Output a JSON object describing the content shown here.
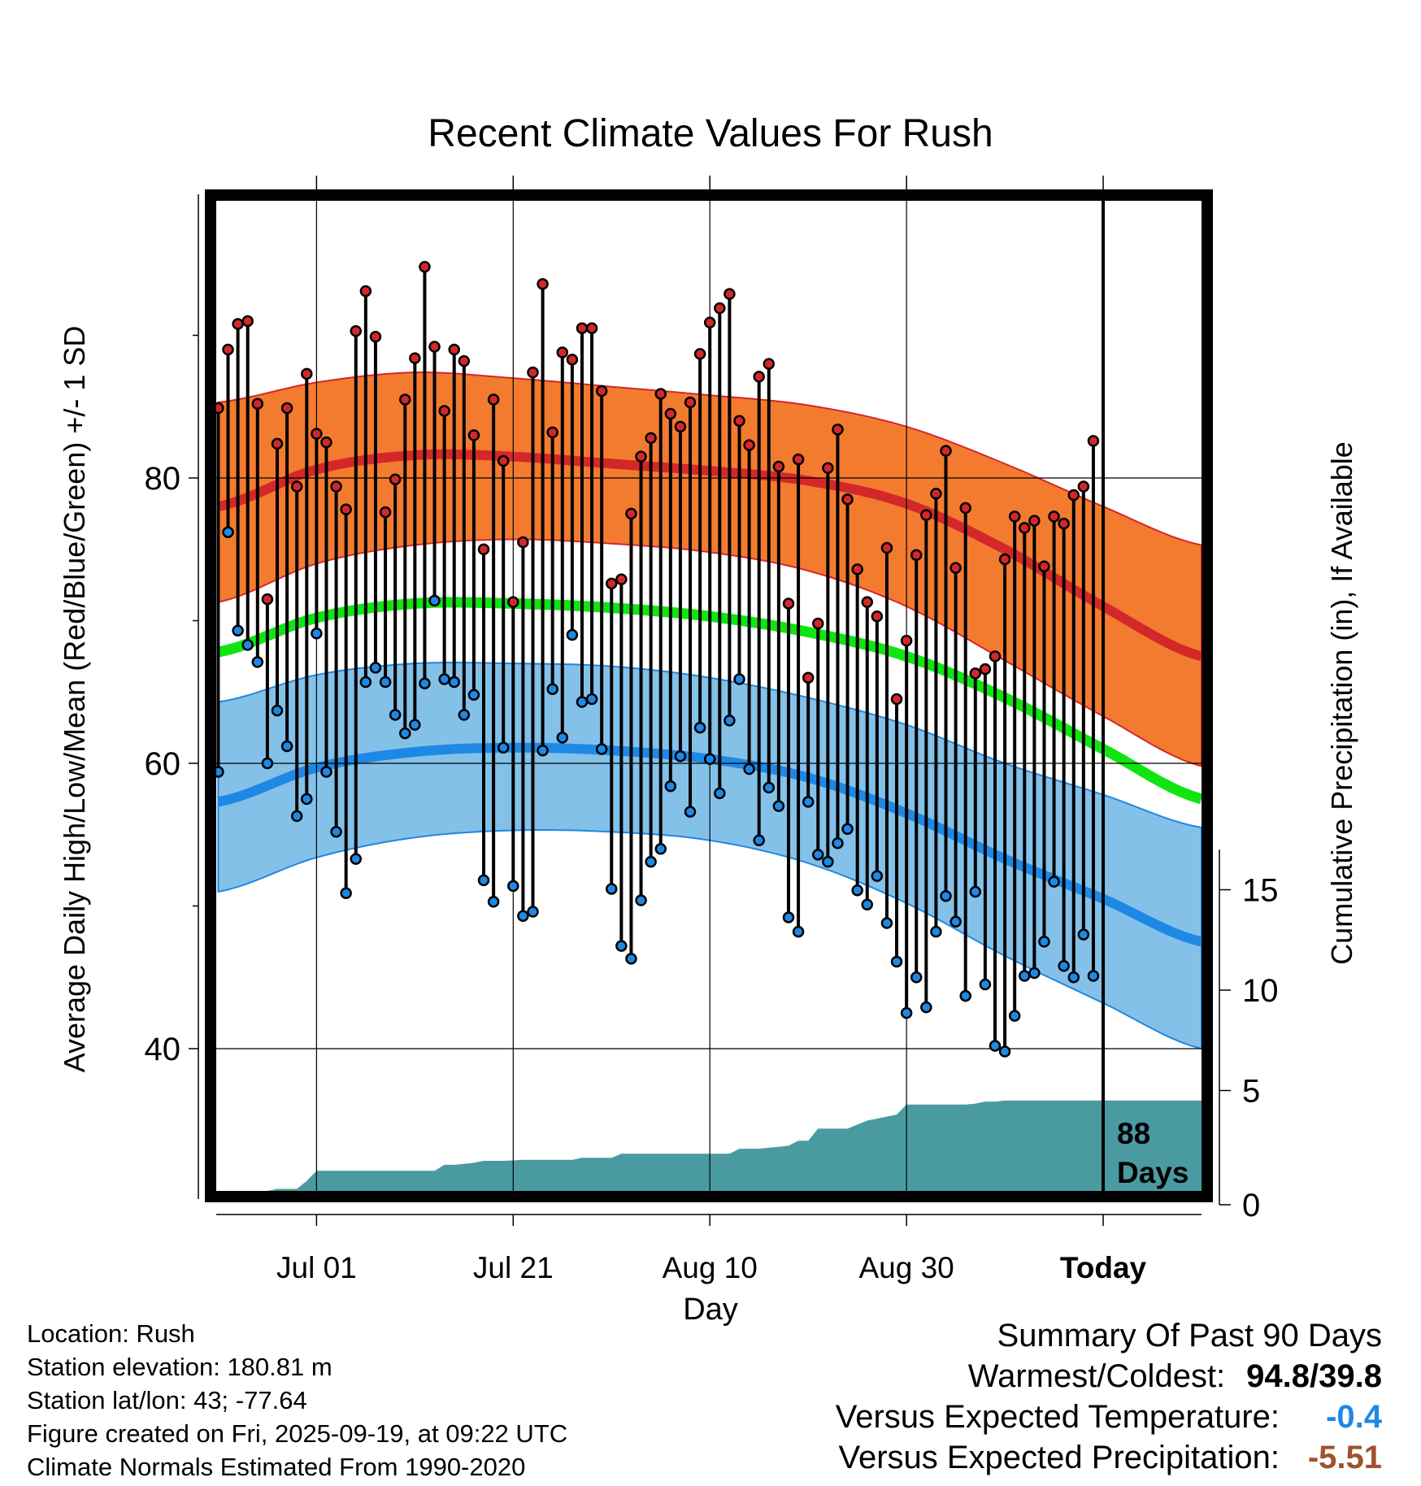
{
  "title": "Recent Climate Values For Rush",
  "colors": {
    "high_band": "#f37b2f",
    "high_line": "#d3282a",
    "low_band": "#84c1e8",
    "low_line": "#1e88e5",
    "mean_line": "#11e511",
    "precip_fill": "#4a9aa1",
    "high_marker": "#d3282a",
    "low_marker": "#1e88e5",
    "temp_value": "#1e88e5",
    "precip_value": "#a0522d"
  },
  "chart_data": {
    "type": "line",
    "title": "Recent Climate Values For Rush",
    "xlabel": "Day",
    "ylabel_left": "Average Daily High/Low/Mean (Red/Blue/Green) +/- 1 SD",
    "ylabel_right": "Cumulative Precipitation (in), If Available",
    "x_ticks": [
      {
        "label": "Jul 01",
        "day": 10
      },
      {
        "label": "Jul 21",
        "day": 30
      },
      {
        "label": "Aug 10",
        "day": 50
      },
      {
        "label": "Aug 30",
        "day": 70
      },
      {
        "label": "Today",
        "day": 90
      }
    ],
    "xlim": [
      -0.2,
      100
    ],
    "temp_ylim": [
      30,
      100
    ],
    "temp_yticks": [
      40,
      60,
      80
    ],
    "temp_minor_yticks": [
      50,
      70,
      90
    ],
    "precip_ylim": [
      0,
      17
    ],
    "precip_yticks": [
      0,
      5,
      10,
      15
    ],
    "today_day": 90,
    "annotation": "88 Days",
    "annotation_line1": "88",
    "annotation_line2": "Days",
    "normals": {
      "days": [
        0,
        10,
        20,
        30,
        40,
        50,
        60,
        70,
        80,
        90,
        100
      ],
      "high_mean": [
        78.0,
        80.6,
        81.6,
        81.5,
        81.0,
        80.5,
        79.8,
        78.2,
        75.0,
        71.0,
        67.5
      ],
      "high_upper": [
        85.3,
        86.7,
        87.4,
        87.0,
        86.4,
        85.8,
        85.1,
        83.6,
        81.0,
        78.0,
        75.3
      ],
      "high_lower": [
        71.3,
        74.0,
        75.3,
        75.7,
        75.4,
        74.8,
        73.5,
        71.0,
        67.2,
        63.3,
        59.8
      ],
      "mean_mean": [
        67.8,
        70.2,
        71.2,
        71.2,
        70.9,
        70.3,
        69.2,
        67.5,
        64.6,
        61.0,
        57.5
      ],
      "low_mean": [
        57.3,
        59.7,
        60.8,
        61.1,
        60.9,
        60.3,
        59.0,
        56.5,
        53.3,
        50.5,
        47.5
      ],
      "low_upper": [
        64.3,
        66.2,
        67.0,
        67.0,
        66.8,
        66.0,
        64.6,
        62.7,
        60.0,
        57.8,
        55.5
      ],
      "low_lower": [
        51.0,
        53.4,
        54.8,
        55.3,
        55.2,
        54.6,
        53.0,
        50.2,
        46.5,
        43.2,
        40.0
      ]
    },
    "daily": {
      "start_day": 0,
      "high": [
        84.9,
        89.0,
        90.8,
        91.0,
        85.2,
        71.5,
        82.4,
        84.9,
        79.4,
        87.3,
        83.1,
        82.5,
        79.4,
        77.8,
        90.3,
        93.1,
        89.9,
        77.6,
        79.9,
        85.5,
        88.4,
        94.8,
        89.2,
        84.7,
        89.0,
        88.2,
        83.0,
        75.0,
        85.5,
        81.2,
        71.3,
        75.5,
        87.4,
        93.6,
        83.2,
        88.8,
        88.3,
        90.5,
        90.5,
        86.1,
        72.6,
        72.9,
        77.5,
        81.5,
        82.8,
        85.9,
        84.5,
        83.6,
        85.3,
        88.7,
        90.9,
        91.9,
        92.9,
        84.0,
        82.3,
        87.1,
        88.0,
        80.8,
        71.2,
        81.3,
        66.0,
        69.8,
        80.7,
        83.4,
        78.5,
        73.6,
        71.3,
        70.3,
        75.1,
        64.5,
        68.6,
        74.6,
        77.4,
        78.9,
        81.9,
        73.7,
        77.9,
        66.3,
        66.6,
        67.5,
        74.3,
        77.3,
        76.5,
        77.0,
        73.8,
        77.3,
        76.8,
        78.8,
        79.4,
        82.6
      ],
      "low": [
        59.4,
        76.2,
        69.3,
        68.3,
        67.1,
        60.0,
        63.7,
        61.2,
        56.3,
        57.5,
        69.1,
        59.4,
        55.2,
        50.9,
        53.3,
        65.7,
        66.7,
        65.7,
        63.4,
        62.1,
        62.7,
        65.6,
        71.4,
        65.9,
        65.7,
        63.4,
        64.8,
        51.8,
        50.3,
        61.1,
        51.4,
        49.3,
        49.6,
        60.9,
        65.2,
        61.8,
        69.0,
        64.3,
        64.5,
        61.0,
        51.2,
        47.2,
        46.3,
        50.4,
        53.1,
        54.0,
        58.4,
        60.5,
        56.6,
        62.5,
        60.3,
        57.9,
        63.0,
        65.9,
        59.6,
        54.6,
        58.3,
        57.0,
        49.2,
        48.2,
        57.3,
        53.6,
        53.1,
        54.4,
        55.4,
        51.1,
        50.1,
        52.1,
        48.8,
        46.1,
        42.5,
        45.0,
        42.9,
        48.2,
        50.7,
        48.9,
        43.7,
        51.0,
        44.5,
        40.2,
        39.8,
        42.3,
        45.1,
        45.3,
        47.5,
        51.7,
        45.8,
        45.0,
        48.0,
        45.1
      ]
    },
    "precip_cumulative": {
      "days": [
        -0.2,
        5,
        6,
        7,
        8,
        9,
        10,
        11,
        22,
        23,
        24,
        25,
        26,
        27,
        28,
        29,
        30,
        31,
        36,
        37,
        38,
        39,
        40,
        41,
        52,
        53,
        54,
        55,
        56,
        57,
        58,
        59,
        60,
        61,
        62,
        63,
        64,
        65,
        66,
        67,
        68,
        69,
        70,
        71,
        72,
        73,
        74,
        75,
        76,
        77,
        78,
        79,
        80,
        81,
        82,
        83,
        84,
        85,
        86,
        87,
        88,
        89,
        90,
        91,
        100
      ],
      "values": [
        0.0,
        0.0,
        0.1,
        0.1,
        0.1,
        0.5,
        1.0,
        1.0,
        1.0,
        1.3,
        1.3,
        1.35,
        1.4,
        1.5,
        1.5,
        1.5,
        1.52,
        1.55,
        1.55,
        1.65,
        1.65,
        1.65,
        1.65,
        1.85,
        1.85,
        2.1,
        2.1,
        2.1,
        2.15,
        2.2,
        2.25,
        2.5,
        2.5,
        3.1,
        3.1,
        3.1,
        3.1,
        3.3,
        3.5,
        3.6,
        3.7,
        3.8,
        4.3,
        4.3,
        4.3,
        4.3,
        4.3,
        4.3,
        4.3,
        4.35,
        4.45,
        4.45,
        4.5,
        4.5,
        4.5,
        4.5,
        4.5,
        4.5,
        4.5,
        4.5,
        4.5,
        4.5,
        4.5,
        4.5,
        4.5
      ]
    }
  },
  "info": {
    "location": "Location: Rush",
    "elevation": "Station elevation: 180.81 m",
    "latlon": "Station lat/lon: 43; -77.64",
    "created": "Figure created on Fri, 2025-09-19, at 09:22 UTC",
    "normals": "Climate Normals Estimated From 1990-2020"
  },
  "summary": {
    "heading": "Summary Of Past 90 Days",
    "warm_cold_label": "Warmest/Coldest:",
    "warm_cold_value": "94.8/39.8",
    "temp_label": "Versus Expected Temperature:",
    "temp_value": "-0.4",
    "precip_label": "Versus Expected Precipitation:",
    "precip_value": "-5.51"
  }
}
